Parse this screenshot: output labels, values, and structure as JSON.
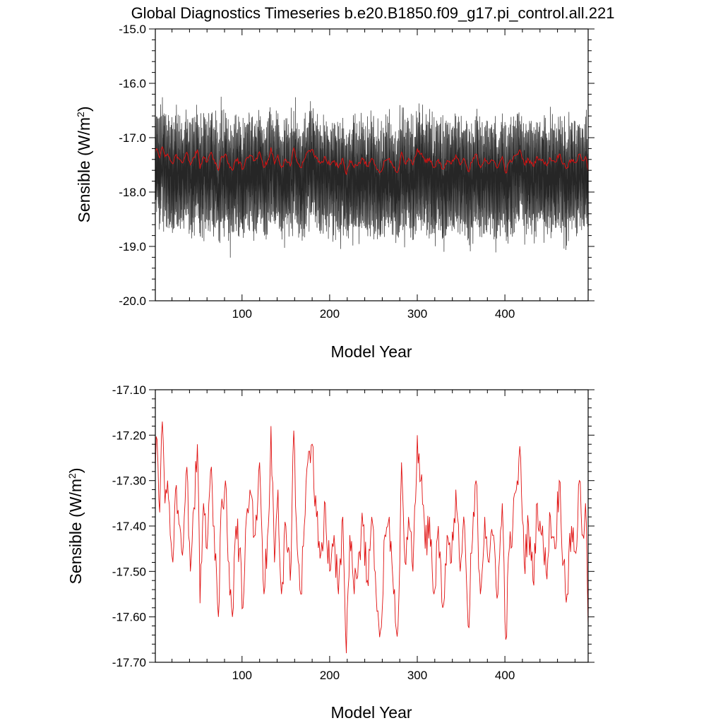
{
  "title": "Global Diagnostics Timeseries b.e20.B1850.f09_g17.pi_control.all.221",
  "colors": {
    "monthly": "#000000",
    "annual": "#e01010",
    "frame": "#000000",
    "background": "#ffffff"
  },
  "chart_data": [
    {
      "type": "line",
      "panel": "monthly",
      "xlabel": "Model Year",
      "ylabel_main": "Sensible (W/m",
      "ylabel_sup": "2",
      "ylabel_close": ")",
      "xlim": [
        1,
        495
      ],
      "ylim": [
        -20.0,
        -15.0
      ],
      "xticks": [
        100,
        200,
        300,
        400
      ],
      "xtick_labels": [
        "100",
        "200",
        "300",
        "400"
      ],
      "yticks": [
        -15.0,
        -16.0,
        -17.0,
        -18.0,
        -19.0,
        -20.0
      ],
      "ytick_labels": [
        "-15.0",
        "-16.0",
        "-17.0",
        "-18.0",
        "-19.0",
        "-20.0"
      ],
      "series": [
        {
          "role": "monthly",
          "style": "seasonal-cycle",
          "color": "#000000",
          "mean": -17.4,
          "summer_high": -16.9,
          "winter_low": -18.45,
          "noise": 0.22,
          "range": [
            -19.5,
            -16.0
          ]
        },
        {
          "role": "annual",
          "color": "#e01010",
          "source": "annual_mean"
        }
      ]
    },
    {
      "type": "line",
      "panel": "annual",
      "xlabel": "Model Year",
      "ylabel_main": "Sensible (W/m",
      "ylabel_sup": "2",
      "ylabel_close": ")",
      "xlim": [
        1,
        495
      ],
      "ylim": [
        -17.7,
        -17.1
      ],
      "xticks": [
        100,
        200,
        300,
        400
      ],
      "xtick_labels": [
        "100",
        "200",
        "300",
        "400"
      ],
      "yticks": [
        -17.1,
        -17.2,
        -17.3,
        -17.4,
        -17.5,
        -17.6,
        -17.7
      ],
      "ytick_labels": [
        "-17.10",
        "-17.20",
        "-17.30",
        "-17.40",
        "-17.50",
        "-17.60",
        "-17.70"
      ],
      "series": [
        {
          "role": "annual",
          "color": "#e01010",
          "source": "annual_mean"
        }
      ]
    }
  ],
  "annual_mean": {
    "x_start": 1,
    "x_end": 495,
    "anchors": [
      [
        1,
        -17.28
      ],
      [
        3,
        -17.21
      ],
      [
        6,
        -17.37
      ],
      [
        9,
        -17.17
      ],
      [
        12,
        -17.35
      ],
      [
        15,
        -17.3
      ],
      [
        18,
        -17.42
      ],
      [
        21,
        -17.48
      ],
      [
        25,
        -17.31
      ],
      [
        29,
        -17.4
      ],
      [
        33,
        -17.44
      ],
      [
        37,
        -17.27
      ],
      [
        41,
        -17.5
      ],
      [
        45,
        -17.36
      ],
      [
        49,
        -17.22
      ],
      [
        52,
        -17.57
      ],
      [
        56,
        -17.35
      ],
      [
        60,
        -17.45
      ],
      [
        64,
        -17.28
      ],
      [
        68,
        -17.4
      ],
      [
        73,
        -17.6
      ],
      [
        77,
        -17.34
      ],
      [
        81,
        -17.3
      ],
      [
        85,
        -17.48
      ],
      [
        89,
        -17.6
      ],
      [
        93,
        -17.4
      ],
      [
        97,
        -17.45
      ],
      [
        101,
        -17.58
      ],
      [
        105,
        -17.38
      ],
      [
        110,
        -17.33
      ],
      [
        115,
        -17.42
      ],
      [
        120,
        -17.26
      ],
      [
        125,
        -17.55
      ],
      [
        130,
        -17.4
      ],
      [
        133,
        -17.18
      ],
      [
        137,
        -17.48
      ],
      [
        141,
        -17.32
      ],
      [
        145,
        -17.55
      ],
      [
        150,
        -17.4
      ],
      [
        155,
        -17.52
      ],
      [
        159,
        -17.19
      ],
      [
        163,
        -17.45
      ],
      [
        167,
        -17.55
      ],
      [
        171,
        -17.4
      ],
      [
        175,
        -17.26
      ],
      [
        180,
        -17.22
      ],
      [
        185,
        -17.38
      ],
      [
        190,
        -17.46
      ],
      [
        195,
        -17.35
      ],
      [
        200,
        -17.5
      ],
      [
        205,
        -17.42
      ],
      [
        210,
        -17.55
      ],
      [
        215,
        -17.38
      ],
      [
        219,
        -17.68
      ],
      [
        223,
        -17.42
      ],
      [
        228,
        -17.55
      ],
      [
        233,
        -17.46
      ],
      [
        238,
        -17.4
      ],
      [
        243,
        -17.52
      ],
      [
        248,
        -17.38
      ],
      [
        253,
        -17.55
      ],
      [
        258,
        -17.63
      ],
      [
        263,
        -17.42
      ],
      [
        268,
        -17.38
      ],
      [
        273,
        -17.55
      ],
      [
        278,
        -17.62
      ],
      [
        282,
        -17.26
      ],
      [
        286,
        -17.48
      ],
      [
        290,
        -17.38
      ],
      [
        295,
        -17.5
      ],
      [
        300,
        -17.2
      ],
      [
        304,
        -17.3
      ],
      [
        309,
        -17.45
      ],
      [
        314,
        -17.38
      ],
      [
        319,
        -17.55
      ],
      [
        324,
        -17.4
      ],
      [
        329,
        -17.58
      ],
      [
        334,
        -17.42
      ],
      [
        339,
        -17.48
      ],
      [
        344,
        -17.32
      ],
      [
        349,
        -17.5
      ],
      [
        354,
        -17.4
      ],
      [
        358,
        -17.62
      ],
      [
        362,
        -17.46
      ],
      [
        367,
        -17.3
      ],
      [
        372,
        -17.55
      ],
      [
        377,
        -17.38
      ],
      [
        382,
        -17.48
      ],
      [
        387,
        -17.42
      ],
      [
        392,
        -17.55
      ],
      [
        397,
        -17.35
      ],
      [
        401,
        -17.65
      ],
      [
        405,
        -17.45
      ],
      [
        409,
        -17.4
      ],
      [
        414,
        -17.3
      ],
      [
        418,
        -17.25
      ],
      [
        422,
        -17.48
      ],
      [
        427,
        -17.4
      ],
      [
        432,
        -17.52
      ],
      [
        437,
        -17.35
      ],
      [
        442,
        -17.42
      ],
      [
        447,
        -17.5
      ],
      [
        452,
        -17.38
      ],
      [
        457,
        -17.45
      ],
      [
        462,
        -17.3
      ],
      [
        467,
        -17.48
      ],
      [
        471,
        -17.55
      ],
      [
        476,
        -17.4
      ],
      [
        481,
        -17.46
      ],
      [
        485,
        -17.3
      ],
      [
        489,
        -17.42
      ],
      [
        492,
        -17.35
      ],
      [
        495,
        -17.62
      ]
    ],
    "jitter": 0.045
  }
}
